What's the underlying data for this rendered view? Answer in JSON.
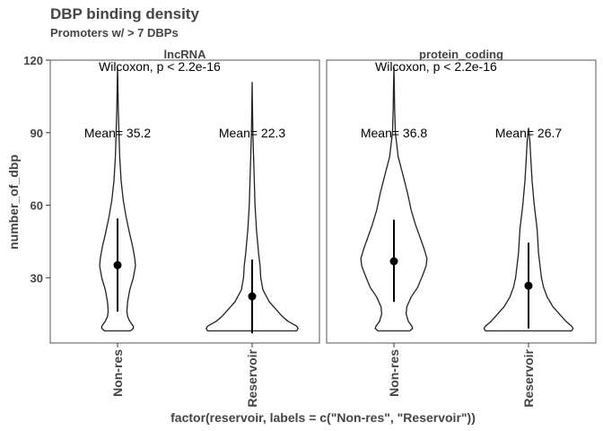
{
  "chart_data": {
    "type": "violin",
    "title": "DBP binding density",
    "subtitle": "Promoters w/ > 7 DBPs",
    "xlabel": "factor(reservoir, labels = c(\"Non-res\", \"Reservoir\"))",
    "ylabel": "number_of_dbp",
    "categories": [
      "Non-res",
      "Reservoir"
    ],
    "ylim": [
      3,
      120
    ],
    "yticks": [
      30,
      60,
      90,
      120
    ],
    "grid": false,
    "panels": [
      {
        "name": "lncRNA",
        "test_label": "Wilcoxon, p < 2.2e-16",
        "groups": [
          {
            "category": "Non-res",
            "mean": 35.2,
            "lower": 16,
            "upper": 54.5,
            "mean_label": "Mean= 35.2",
            "density": [
              [
                8,
                0.18
              ],
              [
                9,
                0.22
              ],
              [
                10,
                0.22
              ],
              [
                12,
                0.17
              ],
              [
                14,
                0.14
              ],
              [
                16,
                0.13
              ],
              [
                20,
                0.14
              ],
              [
                25,
                0.17
              ],
              [
                30,
                0.22
              ],
              [
                35,
                0.25
              ],
              [
                38,
                0.24
              ],
              [
                43,
                0.21
              ],
              [
                48,
                0.17
              ],
              [
                55,
                0.12
              ],
              [
                62,
                0.08
              ],
              [
                70,
                0.05
              ],
              [
                80,
                0.03
              ],
              [
                90,
                0.02
              ],
              [
                100,
                0.01
              ],
              [
                110,
                0.005
              ],
              [
                117,
                0
              ]
            ]
          },
          {
            "category": "Reservoir",
            "mean": 22.3,
            "lower": 7,
            "upper": 37.5,
            "mean_label": "Mean= 22.3",
            "density": [
              [
                8,
                0.62
              ],
              [
                9,
                0.64
              ],
              [
                10,
                0.62
              ],
              [
                12,
                0.5
              ],
              [
                14,
                0.42
              ],
              [
                17,
                0.33
              ],
              [
                20,
                0.24
              ],
              [
                25,
                0.15
              ],
              [
                30,
                0.12
              ],
              [
                35,
                0.11
              ],
              [
                40,
                0.09
              ],
              [
                50,
                0.06
              ],
              [
                60,
                0.04
              ],
              [
                70,
                0.03
              ],
              [
                80,
                0.02
              ],
              [
                90,
                0.01
              ],
              [
                100,
                0.005
              ],
              [
                111,
                0
              ]
            ]
          }
        ]
      },
      {
        "name": "protein_coding",
        "test_label": "Wilcoxon, p < 2.2e-16",
        "groups": [
          {
            "category": "Non-res",
            "mean": 36.8,
            "lower": 20,
            "upper": 54,
            "mean_label": "Mean= 36.8",
            "density": [
              [
                8,
                0.22
              ],
              [
                9,
                0.26
              ],
              [
                10,
                0.25
              ],
              [
                12,
                0.2
              ],
              [
                15,
                0.17
              ],
              [
                18,
                0.18
              ],
              [
                22,
                0.24
              ],
              [
                26,
                0.33
              ],
              [
                31,
                0.4
              ],
              [
                35,
                0.45
              ],
              [
                38,
                0.46
              ],
              [
                42,
                0.42
              ],
              [
                47,
                0.36
              ],
              [
                52,
                0.3
              ],
              [
                58,
                0.24
              ],
              [
                65,
                0.19
              ],
              [
                72,
                0.13
              ],
              [
                80,
                0.06
              ],
              [
                90,
                0.02
              ],
              [
                100,
                0.01
              ],
              [
                110,
                0.005
              ],
              [
                117,
                0
              ]
            ]
          },
          {
            "category": "Reservoir",
            "mean": 26.7,
            "lower": 9,
            "upper": 44.5,
            "mean_label": "Mean= 26.7",
            "density": [
              [
                8,
                0.6
              ],
              [
                9,
                0.62
              ],
              [
                10,
                0.6
              ],
              [
                12,
                0.52
              ],
              [
                15,
                0.43
              ],
              [
                18,
                0.34
              ],
              [
                22,
                0.26
              ],
              [
                26,
                0.21
              ],
              [
                30,
                0.18
              ],
              [
                35,
                0.16
              ],
              [
                40,
                0.14
              ],
              [
                50,
                0.12
              ],
              [
                60,
                0.08
              ],
              [
                70,
                0.05
              ],
              [
                80,
                0.03
              ],
              [
                86,
                0.02
              ],
              [
                92,
                0
              ]
            ]
          }
        ]
      }
    ]
  }
}
